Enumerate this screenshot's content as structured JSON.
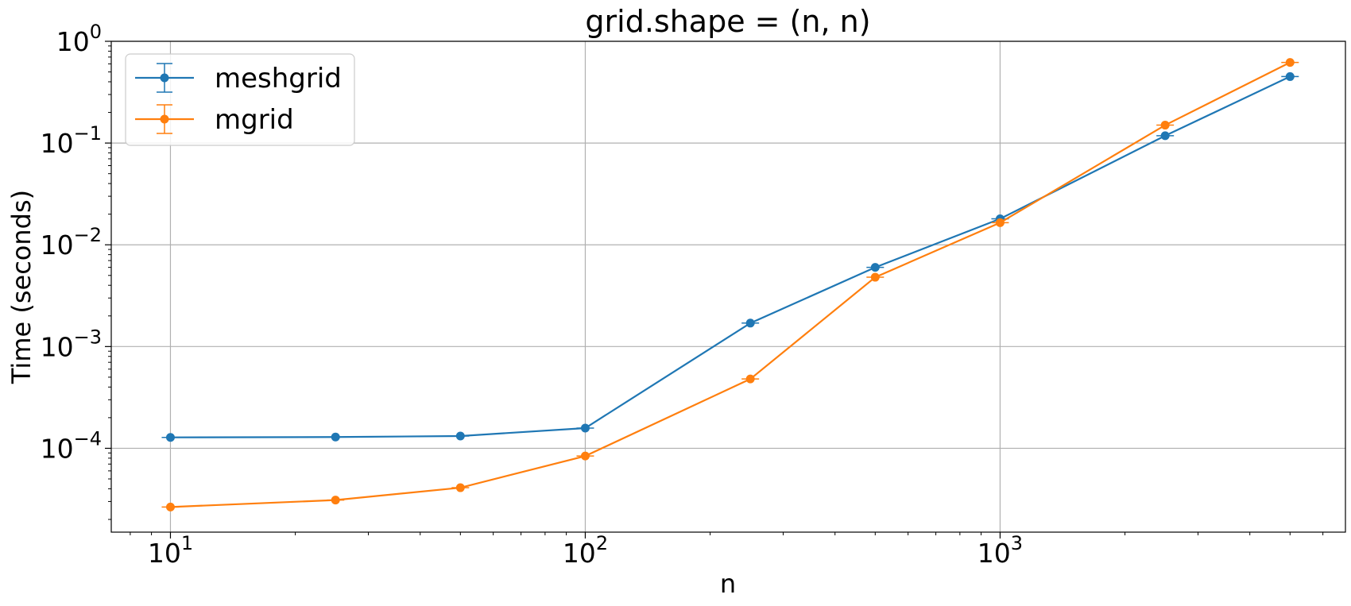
{
  "chart_data": {
    "type": "line",
    "title": "grid.shape = (n, n)",
    "xlabel": "n",
    "ylabel": "Time (seconds)",
    "xscale": "log",
    "yscale": "log",
    "xlim": [
      7.2,
      6800
    ],
    "ylim": [
      1.5e-05,
      1.0
    ],
    "grid": true,
    "legend_position": "top-left",
    "x_ticks": [
      {
        "value": 10,
        "base": "10",
        "exp": "1"
      },
      {
        "value": 100,
        "base": "10",
        "exp": "2"
      },
      {
        "value": 1000,
        "base": "10",
        "exp": "3"
      }
    ],
    "y_ticks": [
      {
        "value": 1,
        "base": "10",
        "exp": "0"
      },
      {
        "value": 0.1,
        "base": "10",
        "exp": "−1"
      },
      {
        "value": 0.01,
        "base": "10",
        "exp": "−2"
      },
      {
        "value": 0.001,
        "base": "10",
        "exp": "−3"
      },
      {
        "value": 0.0001,
        "base": "10",
        "exp": "−4"
      }
    ],
    "x": [
      10,
      25,
      50,
      100,
      250,
      500,
      1000,
      2500,
      5000
    ],
    "series": [
      {
        "name": "meshgrid",
        "color": "#1f77b4",
        "values": [
          0.000128,
          0.000129,
          0.000132,
          0.000158,
          0.0017,
          0.006,
          0.018,
          0.118,
          0.45
        ]
      },
      {
        "name": "mgrid",
        "color": "#ff7f0e",
        "values": [
          2.65e-05,
          3.1e-05,
          4.1e-05,
          8.4e-05,
          0.00048,
          0.0048,
          0.0165,
          0.15,
          0.62
        ]
      }
    ]
  }
}
